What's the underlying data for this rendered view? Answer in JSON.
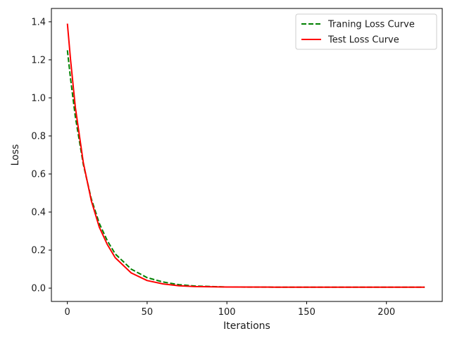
{
  "chart_data": {
    "type": "line",
    "xlabel": "Iterations",
    "ylabel": "Loss",
    "xlim": [
      -10,
      235
    ],
    "ylim": [
      -0.07,
      1.47
    ],
    "xticks": [
      0,
      50,
      100,
      150,
      200
    ],
    "xtick_labels": [
      "0",
      "50",
      "100",
      "150",
      "200"
    ],
    "yticks": [
      0.0,
      0.2,
      0.4,
      0.6,
      0.8,
      1.0,
      1.2,
      1.4
    ],
    "ytick_labels": [
      "0.0",
      "0.2",
      "0.4",
      "0.6",
      "0.8",
      "1.0",
      "1.2",
      "1.4"
    ],
    "grid": false,
    "legend_position": "top-right",
    "series": [
      {
        "name": "Traning Loss Curve",
        "color": "#008000",
        "style": "dashed",
        "x": [
          0,
          2,
          5,
          10,
          15,
          20,
          25,
          30,
          40,
          50,
          60,
          70,
          80,
          100,
          130,
          160,
          190,
          224
        ],
        "y": [
          1.25,
          1.1,
          0.9,
          0.65,
          0.47,
          0.34,
          0.25,
          0.18,
          0.1,
          0.055,
          0.032,
          0.018,
          0.011,
          0.006,
          0.005,
          0.005,
          0.005,
          0.005
        ]
      },
      {
        "name": "Test Loss Curve",
        "color": "#ff0000",
        "style": "solid",
        "x": [
          0,
          2,
          5,
          10,
          15,
          20,
          25,
          30,
          40,
          50,
          60,
          70,
          80,
          100,
          130,
          160,
          190,
          224
        ],
        "y": [
          1.39,
          1.2,
          0.95,
          0.66,
          0.46,
          0.32,
          0.23,
          0.16,
          0.08,
          0.04,
          0.022,
          0.012,
          0.008,
          0.006,
          0.005,
          0.005,
          0.005,
          0.005
        ]
      }
    ]
  }
}
